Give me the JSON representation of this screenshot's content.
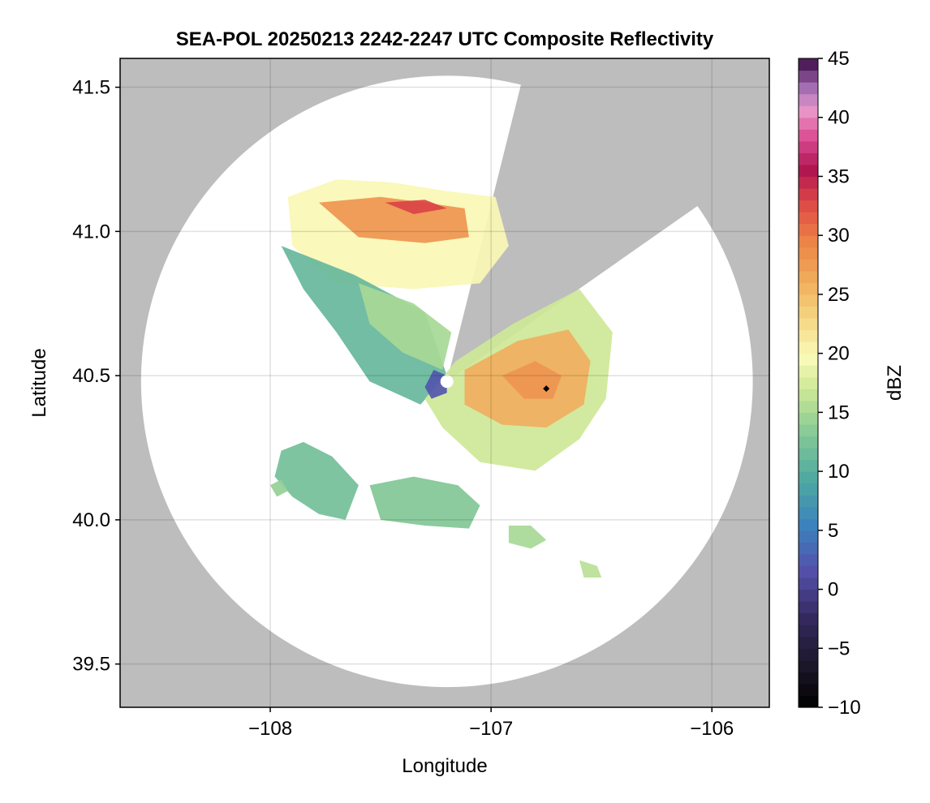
{
  "chart_data": {
    "type": "heatmap",
    "title": "SEA-POL 20250213 2242-2247 UTC Composite Reflectivity",
    "xlabel": "Longitude",
    "ylabel": "Latitude",
    "xlim": [
      -108.68,
      -105.74
    ],
    "ylim": [
      39.35,
      41.6
    ],
    "xticks": [
      -108,
      -107,
      -106
    ],
    "xtick_labels": [
      "−108",
      "−107",
      "−106"
    ],
    "yticks": [
      39.5,
      40.0,
      40.5,
      41.0,
      41.5
    ],
    "ytick_labels": [
      "39.5",
      "40.0",
      "40.5",
      "41.0",
      "41.5"
    ],
    "grid": true,
    "background_color": "#bdbdbd",
    "radar": {
      "center": [
        -107.2,
        40.48
      ],
      "max_range_lat_deg": 1.06,
      "blocked_sector_deg": [
        14,
        55
      ],
      "coverage_color": "#ffffff"
    },
    "marker": {
      "lon": -106.75,
      "lat": 40.455,
      "color": "#000000"
    },
    "colorbar": {
      "label": "dBZ",
      "range": [
        -10,
        45
      ],
      "step": 1,
      "ticks": [
        -10,
        -5,
        0,
        5,
        10,
        15,
        20,
        25,
        30,
        35,
        40,
        45
      ],
      "tick_labels": [
        "−10",
        "−5",
        "0",
        "5",
        "10",
        "15",
        "20",
        "25",
        "30",
        "35",
        "40",
        "45"
      ]
    },
    "echo_regions": [
      {
        "name": "northern-band",
        "points": [
          [
            -107.92,
            41.12
          ],
          [
            -107.7,
            41.18
          ],
          [
            -107.45,
            41.17
          ],
          [
            -107.2,
            41.14
          ],
          [
            -106.98,
            41.12
          ],
          [
            -106.92,
            40.95
          ],
          [
            -107.05,
            40.82
          ],
          [
            -107.35,
            40.8
          ],
          [
            -107.7,
            40.82
          ],
          [
            -107.9,
            40.95
          ]
        ],
        "dbz": 20
      },
      {
        "name": "northern-core",
        "points": [
          [
            -107.78,
            41.1
          ],
          [
            -107.5,
            41.12
          ],
          [
            -107.3,
            41.1
          ],
          [
            -107.12,
            41.08
          ],
          [
            -107.1,
            40.98
          ],
          [
            -107.3,
            40.96
          ],
          [
            -107.6,
            40.98
          ]
        ],
        "dbz": 28
      },
      {
        "name": "northern-max",
        "points": [
          [
            -107.48,
            41.1
          ],
          [
            -107.3,
            41.11
          ],
          [
            -107.2,
            41.08
          ],
          [
            -107.35,
            41.06
          ]
        ],
        "dbz": 33
      },
      {
        "name": "western-stratiform",
        "points": [
          [
            -107.95,
            40.95
          ],
          [
            -107.62,
            40.85
          ],
          [
            -107.3,
            40.72
          ],
          [
            -107.2,
            40.5
          ],
          [
            -107.32,
            40.4
          ],
          [
            -107.55,
            40.48
          ],
          [
            -107.7,
            40.65
          ],
          [
            -107.85,
            40.8
          ]
        ],
        "dbz": 11
      },
      {
        "name": "central-transition",
        "points": [
          [
            -107.6,
            40.82
          ],
          [
            -107.35,
            40.75
          ],
          [
            -107.18,
            40.65
          ],
          [
            -107.22,
            40.52
          ],
          [
            -107.4,
            40.58
          ],
          [
            -107.55,
            40.68
          ]
        ],
        "dbz": 15
      },
      {
        "name": "east-main",
        "points": [
          [
            -107.16,
            40.55
          ],
          [
            -106.9,
            40.68
          ],
          [
            -106.6,
            40.8
          ],
          [
            -106.45,
            40.65
          ],
          [
            -106.48,
            40.42
          ],
          [
            -106.6,
            40.28
          ],
          [
            -106.8,
            40.17
          ],
          [
            -107.05,
            40.2
          ],
          [
            -107.22,
            40.32
          ],
          [
            -107.3,
            40.42
          ]
        ],
        "dbz": 17
      },
      {
        "name": "east-core",
        "points": [
          [
            -107.12,
            40.52
          ],
          [
            -106.88,
            40.62
          ],
          [
            -106.65,
            40.66
          ],
          [
            -106.55,
            40.55
          ],
          [
            -106.58,
            40.4
          ],
          [
            -106.75,
            40.32
          ],
          [
            -106.95,
            40.33
          ],
          [
            -107.12,
            40.4
          ]
        ],
        "dbz": 26
      },
      {
        "name": "east-max",
        "points": [
          [
            -106.95,
            40.5
          ],
          [
            -106.8,
            40.55
          ],
          [
            -106.68,
            40.5
          ],
          [
            -106.72,
            40.42
          ],
          [
            -106.85,
            40.42
          ]
        ],
        "dbz": 28
      },
      {
        "name": "near-radar-ring",
        "points": [
          [
            -107.26,
            40.52
          ],
          [
            -107.2,
            40.5
          ],
          [
            -107.2,
            40.44
          ],
          [
            -107.27,
            40.42
          ],
          [
            -107.3,
            40.46
          ]
        ],
        "dbz": 2
      },
      {
        "name": "southwest-cell",
        "points": [
          [
            -107.95,
            40.24
          ],
          [
            -107.85,
            40.27
          ],
          [
            -107.72,
            40.22
          ],
          [
            -107.6,
            40.12
          ],
          [
            -107.66,
            40.0
          ],
          [
            -107.78,
            40.02
          ],
          [
            -107.9,
            40.08
          ],
          [
            -107.98,
            40.15
          ]
        ],
        "dbz": 12
      },
      {
        "name": "south-cell",
        "points": [
          [
            -107.55,
            40.12
          ],
          [
            -107.35,
            40.15
          ],
          [
            -107.15,
            40.12
          ],
          [
            -107.05,
            40.05
          ],
          [
            -107.1,
            39.97
          ],
          [
            -107.3,
            39.98
          ],
          [
            -107.5,
            40.0
          ]
        ],
        "dbz": 13
      },
      {
        "name": "southeast-cell",
        "points": [
          [
            -106.92,
            39.98
          ],
          [
            -106.82,
            39.98
          ],
          [
            -106.75,
            39.93
          ],
          [
            -106.82,
            39.9
          ],
          [
            -106.92,
            39.92
          ]
        ],
        "dbz": 15
      },
      {
        "name": "far-southeast-cell",
        "points": [
          [
            -106.6,
            39.86
          ],
          [
            -106.52,
            39.84
          ],
          [
            -106.5,
            39.8
          ],
          [
            -106.58,
            39.8
          ]
        ],
        "dbz": 16
      },
      {
        "name": "southwest-fragment",
        "points": [
          [
            -108.0,
            40.12
          ],
          [
            -107.95,
            40.14
          ],
          [
            -107.92,
            40.1
          ],
          [
            -107.97,
            40.08
          ]
        ],
        "dbz": 14
      }
    ]
  }
}
